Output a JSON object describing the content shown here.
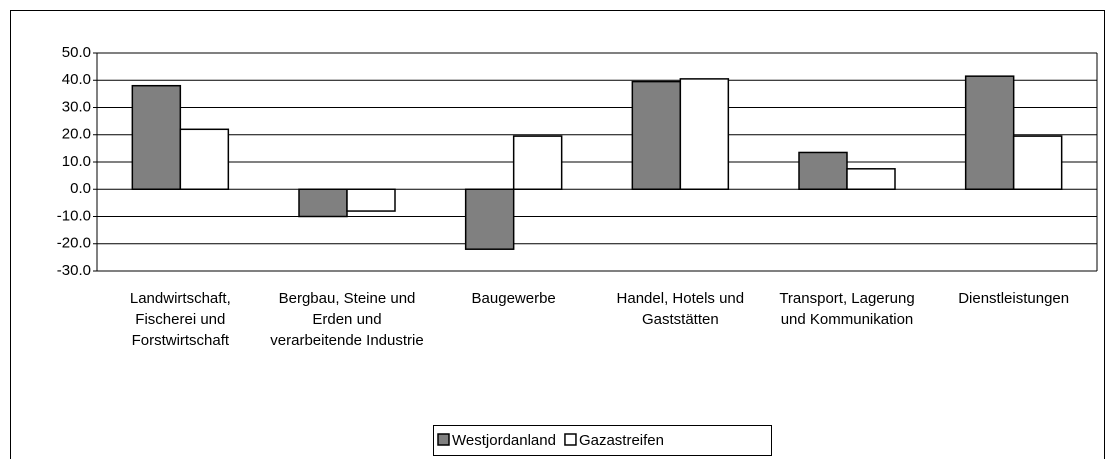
{
  "chart_data": {
    "type": "bar",
    "categories": [
      "Landwirtschaft, Fischerei und Forstwirtschaft",
      "Bergbau, Steine und Erden und verarbeitende Industrie",
      "Baugewerbe",
      "Handel, Hotels und Gaststätten",
      "Transport, Lagerung und Kommunikation",
      "Dienstleistungen"
    ],
    "series": [
      {
        "name": "Westjordanland",
        "color": "#808080",
        "values": [
          38,
          -10,
          -22,
          39.5,
          13.5,
          41.5
        ]
      },
      {
        "name": "Gazastreifen",
        "color": "#ffffff",
        "values": [
          22,
          -8,
          19.5,
          40.5,
          7.5,
          19.5
        ]
      }
    ],
    "ylim": [
      -30,
      50
    ],
    "yticks": [
      {
        "value": -30,
        "label": "-30.0"
      },
      {
        "value": -20,
        "label": "-20.0"
      },
      {
        "value": -10,
        "label": "-10.0"
      },
      {
        "value": 0,
        "label": "0.0"
      },
      {
        "value": 10,
        "label": "10.0"
      },
      {
        "value": 20,
        "label": "20.0"
      },
      {
        "value": 30,
        "label": "30.0"
      },
      {
        "value": 40,
        "label": "40.0"
      },
      {
        "value": 50,
        "label": "50.0"
      }
    ],
    "grid": true,
    "legend": "bottom"
  }
}
